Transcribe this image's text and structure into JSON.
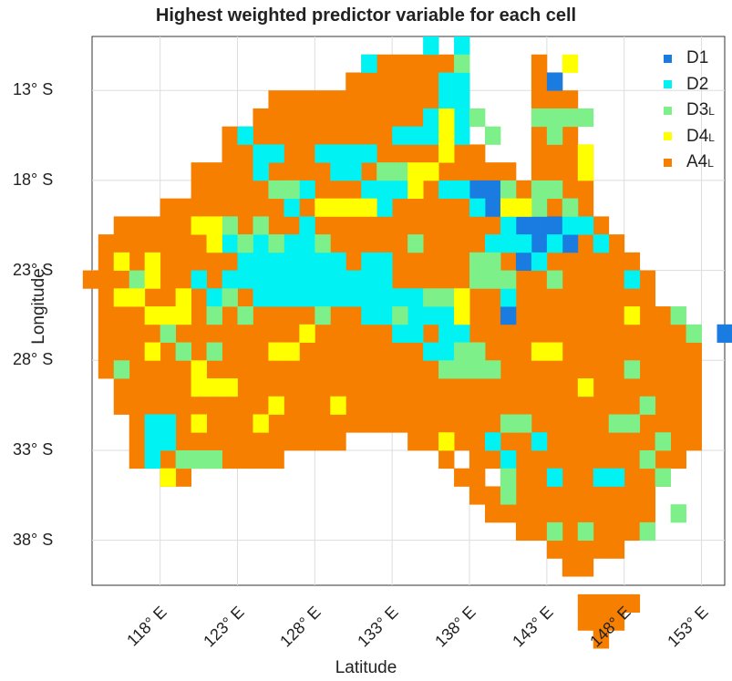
{
  "title": "Highest weighted predictor variable for each cell",
  "xlabel": "Latitude",
  "ylabel": "Longitude",
  "legend": [
    {
      "key": "D1",
      "label": "D1",
      "sub": "",
      "color": "#1a7be0"
    },
    {
      "key": "D2",
      "label": "D2",
      "sub": "",
      "color": "#00f2f2"
    },
    {
      "key": "D3",
      "label": "D3",
      "sub": "L",
      "color": "#7df08a"
    },
    {
      "key": "D4",
      "label": "D4",
      "sub": "L",
      "color": "#ffff00"
    },
    {
      "key": "A4",
      "label": "A4",
      "sub": "L",
      "color": "#f77f00"
    }
  ],
  "map_data": {
    "x_ticks": [
      "118° E",
      "123° E",
      "128° E",
      "133° E",
      "138° E",
      "143° E",
      "148° E",
      "153° E"
    ],
    "y_ticks": [
      "13° S",
      "18° S",
      "23° S",
      "28° S",
      "33° S",
      "38° S"
    ],
    "x_range_deg": [
      113.6,
      154.5
    ],
    "y_range_deg": [
      -40.5,
      -10.0
    ],
    "cell_size_deg": 1.0,
    "grid": true
  }
}
